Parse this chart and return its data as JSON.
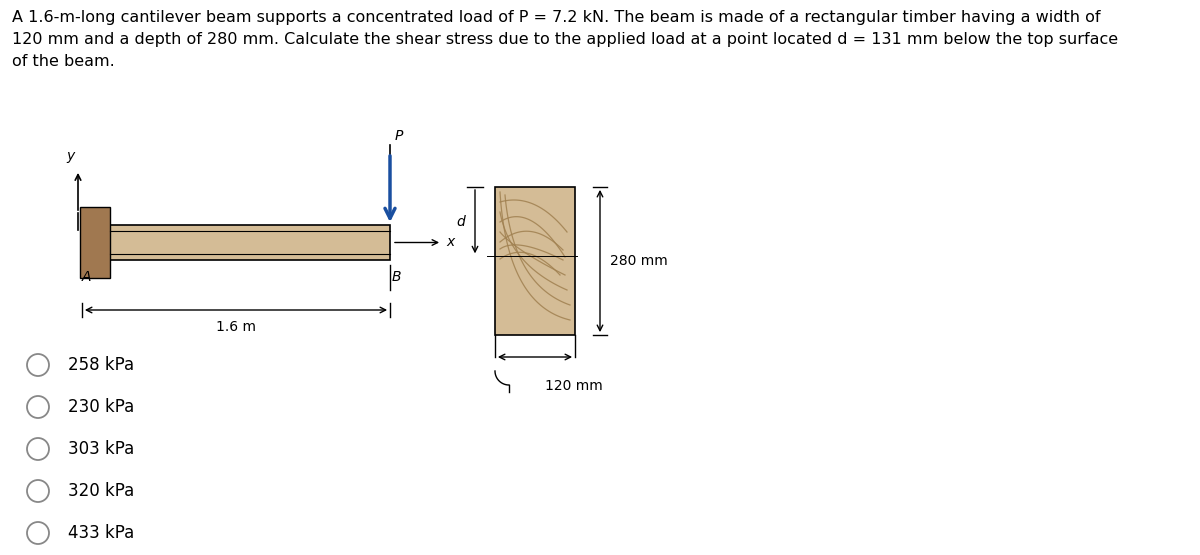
{
  "title_text": "A 1.6-m-long cantilever beam supports a concentrated load of P = 7.2 kN. The beam is made of a rectangular timber having a width of\n120 mm and a depth of 280 mm. Calculate the shear stress due to the applied load at a point located d = 131 mm below the top surface\nof the beam.",
  "beam_color": "#D4BC96",
  "wall_color": "#A07850",
  "options": [
    "258 kPa",
    "230 kPa",
    "303 kPa",
    "320 kPa",
    "433 kPa"
  ],
  "bg_color": "#ffffff",
  "text_color": "#000000",
  "font_size_title": 11.5,
  "font_size_labels": 10,
  "font_size_options": 12,
  "arrow_blue": "#1a4fa0",
  "grain_color": "#A08050"
}
